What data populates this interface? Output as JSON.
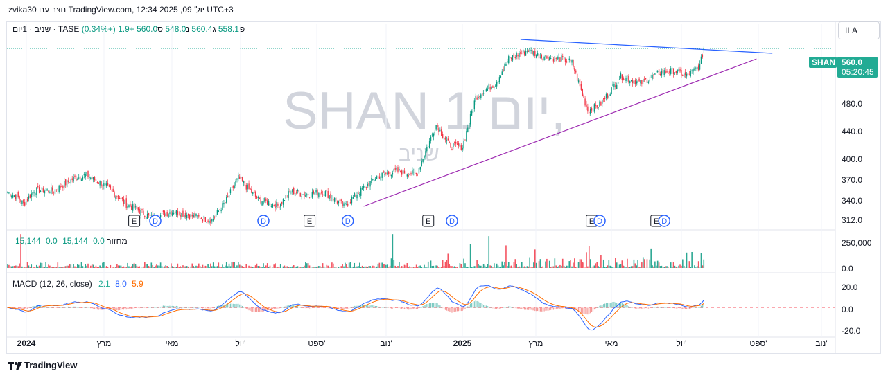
{
  "header": {
    "text": "zvika30 נוצר עם TradingView.com, יול' 09, 2025 12:34 UTC+3"
  },
  "symbol_button": {
    "label": "ILA"
  },
  "legend": {
    "title": "שניב · 1יום · TASE",
    "open_label": "פ",
    "open": "558.1",
    "high_label": "ג",
    "high": "560.4",
    "low_label": "נ",
    "low": "548.0",
    "close_label": "ס",
    "close": "560.0",
    "change": "+1.9 (+0.34%)"
  },
  "volume_legend": {
    "label": "מחזור",
    "v1": "0.0",
    "v2": "15,144",
    "v3": "0.0",
    "v4": "15,144"
  },
  "macd_legend": {
    "label": "MACD (12, 26, close)",
    "hist": "2.1",
    "macd": "8.0",
    "signal": "5.9"
  },
  "watermark": {
    "symbol": "SHAN",
    "interval": "יום 1,",
    "name": "שניב"
  },
  "price_tag": {
    "symbol": "SHAN",
    "price": "560.0",
    "countdown": "05:20:45"
  },
  "footer": {
    "brand": "TradingView"
  },
  "colors": {
    "up": "#089981",
    "down": "#f23645",
    "macd": "#2962ff",
    "signal": "#ff6d00",
    "trend_upper": "#2962ff",
    "trend_lower": "#9c27b0",
    "price_tag": "#22ab94",
    "badge_border": "#131722",
    "div_badge": "#2962ff"
  },
  "chart_data": {
    "type": "candlestick",
    "price_axis": {
      "ticks": [
        312.0,
        340.0,
        370.0,
        400.0,
        440.0,
        480.0
      ],
      "ylim": [
        300,
        595
      ]
    },
    "volume_axis": {
      "ticks": [
        "250,000",
        "0.0"
      ]
    },
    "macd_axis": {
      "ticks": [
        "20.0",
        "0.0",
        "-20.0"
      ],
      "ylim": [
        -25,
        28
      ]
    },
    "time_axis": {
      "labels": [
        "2024",
        "מרץ",
        "מאי",
        "יול'",
        "ספט'",
        "נוב'",
        "2025",
        "מרץ",
        "מאי",
        "יול'",
        "ספט'",
        "נוב'"
      ]
    },
    "close_anchors": [
      [
        0,
        352
      ],
      [
        8,
        345
      ],
      [
        12,
        335
      ],
      [
        20,
        355
      ],
      [
        35,
        355
      ],
      [
        50,
        372
      ],
      [
        60,
        377
      ],
      [
        75,
        360
      ],
      [
        90,
        335
      ],
      [
        110,
        315
      ],
      [
        125,
        325
      ],
      [
        140,
        318
      ],
      [
        155,
        312
      ],
      [
        165,
        338
      ],
      [
        175,
        373
      ],
      [
        190,
        342
      ],
      [
        205,
        333
      ],
      [
        215,
        354
      ],
      [
        225,
        349
      ],
      [
        240,
        353
      ],
      [
        255,
        332
      ],
      [
        265,
        350
      ],
      [
        280,
        375
      ],
      [
        295,
        383
      ],
      [
        310,
        378
      ],
      [
        325,
        450
      ],
      [
        335,
        420
      ],
      [
        345,
        418
      ],
      [
        355,
        490
      ],
      [
        370,
        510
      ],
      [
        380,
        545
      ],
      [
        395,
        558
      ],
      [
        405,
        548
      ],
      [
        420,
        545
      ],
      [
        428,
        540
      ],
      [
        440,
        470
      ],
      [
        450,
        480
      ],
      [
        465,
        520
      ],
      [
        480,
        510
      ],
      [
        495,
        525
      ],
      [
        505,
        528
      ],
      [
        515,
        520
      ],
      [
        525,
        535
      ],
      [
        528,
        560
      ]
    ],
    "last": {
      "open": 558.1,
      "high": 560.4,
      "low": 548.0,
      "close": 560.0,
      "change": 1.9,
      "change_pct": 0.34
    },
    "trendlines": [
      {
        "name": "upper",
        "from": [
          389,
          573
        ],
        "to": [
          580,
          553
        ]
      },
      {
        "name": "lower",
        "from": [
          270,
          332
        ],
        "to": [
          568,
          545
        ]
      }
    ],
    "events": [
      {
        "type": "E",
        "bar": 96
      },
      {
        "type": "D",
        "bar": 112
      },
      {
        "type": "D",
        "bar": 194
      },
      {
        "type": "E",
        "bar": 229
      },
      {
        "type": "D",
        "bar": 258
      },
      {
        "type": "E",
        "bar": 319
      },
      {
        "type": "D",
        "bar": 337
      },
      {
        "type": "E",
        "bar": 443
      },
      {
        "type": "D",
        "bar": 449
      },
      {
        "type": "E",
        "bar": 492
      },
      {
        "type": "D",
        "bar": 498
      }
    ],
    "volume_spikes": [
      [
        10,
        330000
      ],
      [
        292,
        330000
      ],
      [
        351,
        230000
      ],
      [
        365,
        310000
      ],
      [
        378,
        220000
      ],
      [
        400,
        180000
      ],
      [
        441,
        210000
      ],
      [
        488,
        190000
      ],
      [
        515,
        150000
      ]
    ]
  }
}
